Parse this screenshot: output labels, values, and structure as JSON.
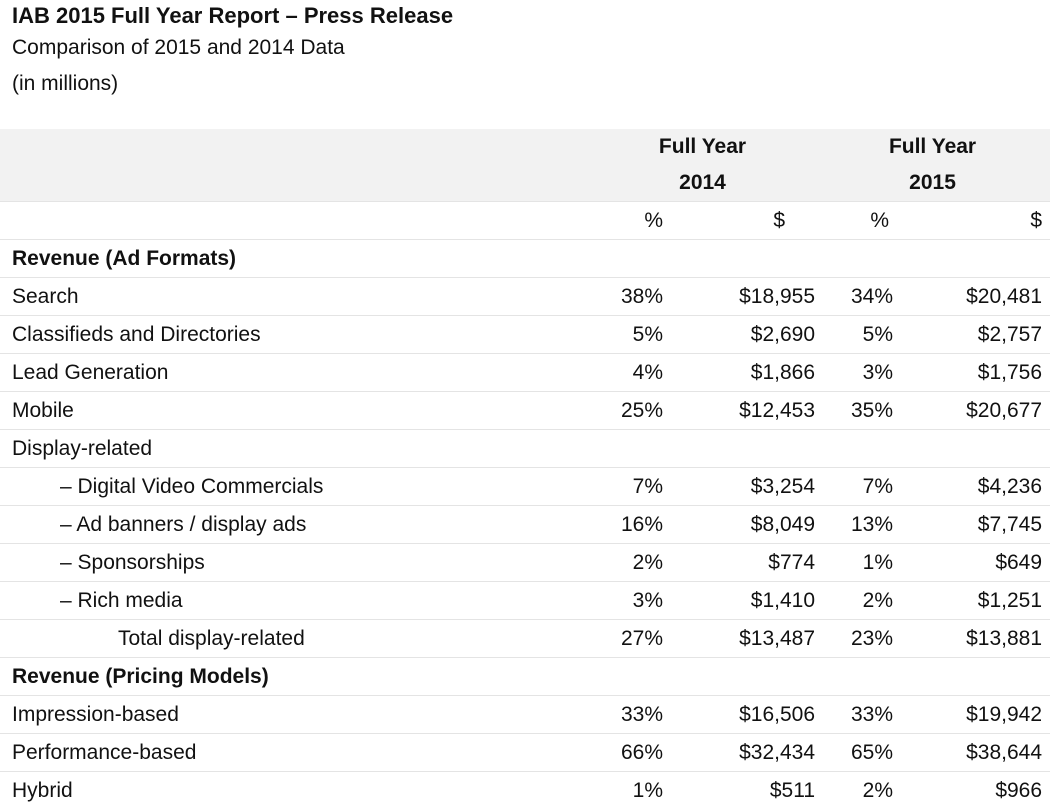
{
  "header": {
    "title": "IAB 2015 Full Year Report – Press Release",
    "subtitle": "Comparison of 2015 and 2014 Data",
    "units": "(in millions)"
  },
  "columns": {
    "fy2014_line1": "Full Year",
    "fy2014_line2": "2014",
    "fy2015_line1": "Full Year",
    "fy2015_line2": "2015",
    "pct": "%",
    "dollar": "$"
  },
  "sections": {
    "ad_formats": "Revenue (Ad Formats)",
    "pricing_models": "Revenue (Pricing Models)"
  },
  "rows": [
    {
      "label": "Search",
      "pct2014": "38%",
      "usd2014": "$18,955",
      "pct2015": "34%",
      "usd2015": "$20,481"
    },
    {
      "label": "Classifieds and Directories",
      "pct2014": "5%",
      "usd2014": "$2,690",
      "pct2015": "5%",
      "usd2015": "$2,757"
    },
    {
      "label": "Lead Generation",
      "pct2014": "4%",
      "usd2014": "$1,866",
      "pct2015": "3%",
      "usd2015": "$1,756"
    },
    {
      "label": "Mobile",
      "pct2014": "25%",
      "usd2014": "$12,453",
      "pct2015": "35%",
      "usd2015": "$20,677"
    },
    {
      "label": "Display-related"
    },
    {
      "label": "– Digital Video Commercials",
      "pct2014": "7%",
      "usd2014": "$3,254",
      "pct2015": "7%",
      "usd2015": "$4,236"
    },
    {
      "label": "– Ad banners / display ads",
      "pct2014": "16%",
      "usd2014": "$8,049",
      "pct2015": "13%",
      "usd2015": "$7,745"
    },
    {
      "label": "– Sponsorships",
      "pct2014": "2%",
      "usd2014": "$774",
      "pct2015": "1%",
      "usd2015": "$649"
    },
    {
      "label": "– Rich media",
      "pct2014": "3%",
      "usd2014": "$1,410",
      "pct2015": "2%",
      "usd2015": "$1,251"
    },
    {
      "label": "Total display-related",
      "pct2014": "27%",
      "usd2014": "$13,487",
      "pct2015": "23%",
      "usd2015": "$13,881"
    },
    {
      "label": "Impression-based",
      "pct2014": "33%",
      "usd2014": "$16,506",
      "pct2015": "33%",
      "usd2015": "$19,942"
    },
    {
      "label": "Performance-based",
      "pct2014": "66%",
      "usd2014": "$32,434",
      "pct2015": "65%",
      "usd2015": "$38,644"
    },
    {
      "label": "Hybrid",
      "pct2014": "1%",
      "usd2014": "$511",
      "pct2015": "2%",
      "usd2015": "$966"
    }
  ]
}
